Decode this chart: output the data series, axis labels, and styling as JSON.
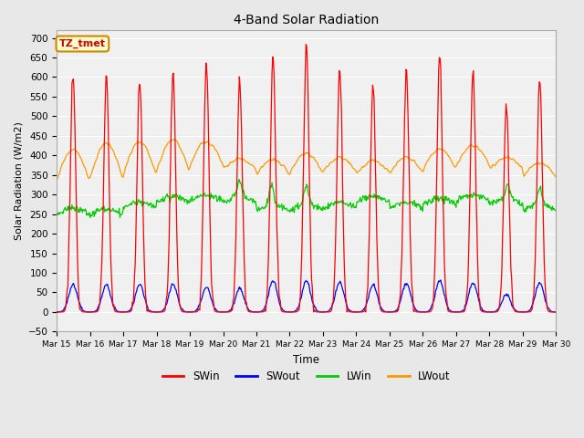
{
  "title": "4-Band Solar Radiation",
  "xlabel": "Time",
  "ylabel": "Solar Radiation (W/m2)",
  "ylim": [
    -50,
    720
  ],
  "yticks": [
    -50,
    0,
    50,
    100,
    150,
    200,
    250,
    300,
    350,
    400,
    450,
    500,
    550,
    600,
    650,
    700
  ],
  "annotation_text": "TZ_tmet",
  "annotation_bg": "#ffffcc",
  "annotation_border": "#cc8800",
  "fig_bg": "#e8e8e8",
  "plot_bg": "#f0f0f0",
  "grid_color": "#ffffff",
  "colors": {
    "SWin": "#ff0000",
    "SWout": "#0000ff",
    "LWin": "#00cc00",
    "LWout": "#ff9900"
  },
  "n_days": 15,
  "start_day": 15,
  "sw_peaks": [
    605,
    600,
    600,
    600,
    630,
    590,
    650,
    680,
    620,
    580,
    620,
    660,
    615,
    530,
    600
  ],
  "swout_peaks": [
    70,
    70,
    70,
    70,
    65,
    60,
    80,
    80,
    75,
    70,
    75,
    80,
    75,
    45,
    75
  ],
  "lw_base_day": [
    250,
    248,
    265,
    280,
    283,
    280,
    258,
    260,
    265,
    280,
    265,
    275,
    285,
    275,
    260
  ],
  "lwout_night": [
    335,
    340,
    350,
    360,
    375,
    365,
    350,
    355,
    360,
    355,
    355,
    365,
    375,
    365,
    345
  ],
  "lwout_peak": [
    415,
    430,
    435,
    440,
    435,
    390,
    390,
    405,
    395,
    385,
    395,
    415,
    425,
    395,
    380
  ]
}
